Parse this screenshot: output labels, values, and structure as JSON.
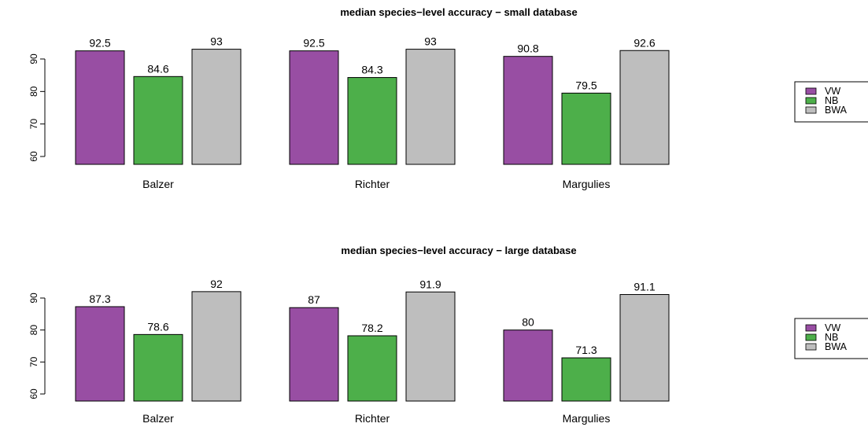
{
  "colors": {
    "VW": "#984EA3",
    "NB": "#4DAF4A",
    "BWA": "#BEBEBE"
  },
  "chart_data": [
    {
      "type": "bar",
      "title": "median species−level accuracy − small database",
      "categories": [
        "Balzer",
        "Richter",
        "Margulies"
      ],
      "series": [
        {
          "name": "VW",
          "values": [
            92.5,
            92.5,
            90.8
          ],
          "labels": [
            "92.5",
            "92.5",
            "90.8"
          ]
        },
        {
          "name": "NB",
          "values": [
            84.6,
            84.3,
            79.5
          ],
          "labels": [
            "84.6",
            "84.3",
            "79.5"
          ]
        },
        {
          "name": "BWA",
          "values": [
            93,
            93,
            92.6
          ],
          "labels": [
            "93",
            "93",
            "92.6"
          ]
        }
      ],
      "yticks": [
        60,
        70,
        80,
        90
      ],
      "ylim": [
        56,
        96
      ],
      "legend": "right",
      "grid": false
    },
    {
      "type": "bar",
      "title": "median species−level accuracy − large database",
      "categories": [
        "Balzer",
        "Richter",
        "Margulies"
      ],
      "series": [
        {
          "name": "VW",
          "values": [
            87.3,
            87,
            80
          ],
          "labels": [
            "87.3",
            "87",
            "80"
          ]
        },
        {
          "name": "NB",
          "values": [
            78.6,
            78.2,
            71.3
          ],
          "labels": [
            "78.6",
            "78.2",
            "71.3"
          ]
        },
        {
          "name": "BWA",
          "values": [
            92,
            91.9,
            91.1
          ],
          "labels": [
            "92",
            "91.9",
            "91.1"
          ]
        }
      ],
      "yticks": [
        60,
        70,
        80,
        90
      ],
      "ylim": [
        56,
        96
      ],
      "legend": "right",
      "grid": false
    }
  ]
}
